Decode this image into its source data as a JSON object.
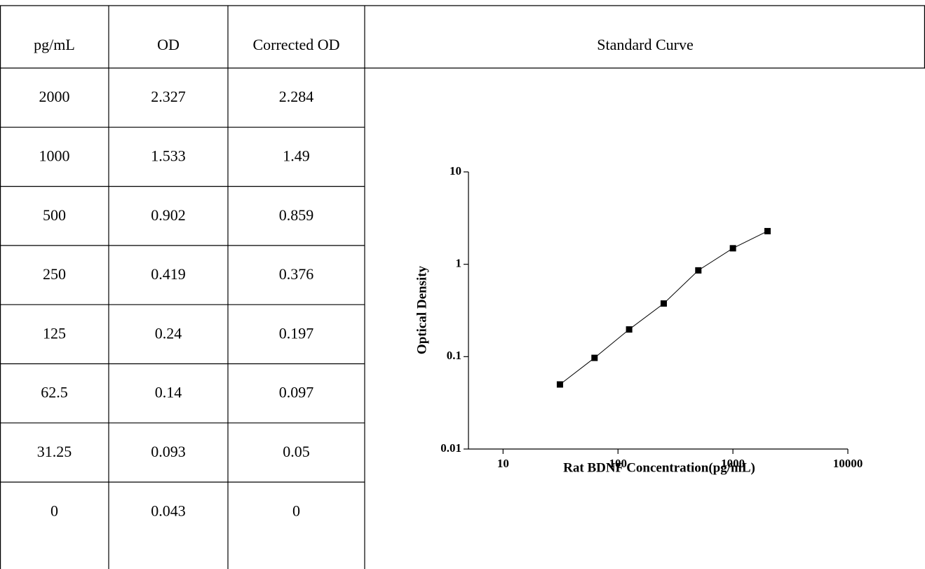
{
  "table": {
    "header": [
      "pg/mL",
      "OD",
      "Corrected OD",
      "Standard Curve"
    ],
    "rows": [
      [
        2000,
        2.327,
        2.284
      ],
      [
        1000,
        1.533,
        1.49
      ],
      [
        500,
        0.902,
        0.859
      ],
      [
        250,
        0.419,
        0.376
      ],
      [
        125,
        0.24,
        0.197
      ],
      [
        62.5,
        0.14,
        0.097
      ],
      [
        31.25,
        0.093,
        0.05
      ],
      [
        0,
        0.043,
        0
      ]
    ]
  },
  "chart_data": {
    "type": "line",
    "x_label": "Rat BDNF Concentration(pg/mL)",
    "y_label": "Optical Density",
    "x": [
      31.25,
      62.5,
      125,
      250,
      500,
      1000,
      2000
    ],
    "values": [
      0.05,
      0.097,
      0.197,
      0.376,
      0.859,
      1.49,
      2.284
    ],
    "color": "#000000",
    "markers": true,
    "xlog": true,
    "ylog": true,
    "xlim": [
      5,
      10000
    ],
    "ylim": [
      0.01,
      10
    ],
    "xticks": [
      10,
      100,
      1000,
      10000
    ],
    "yticks": [
      0.01,
      0.1,
      1,
      10
    ]
  }
}
